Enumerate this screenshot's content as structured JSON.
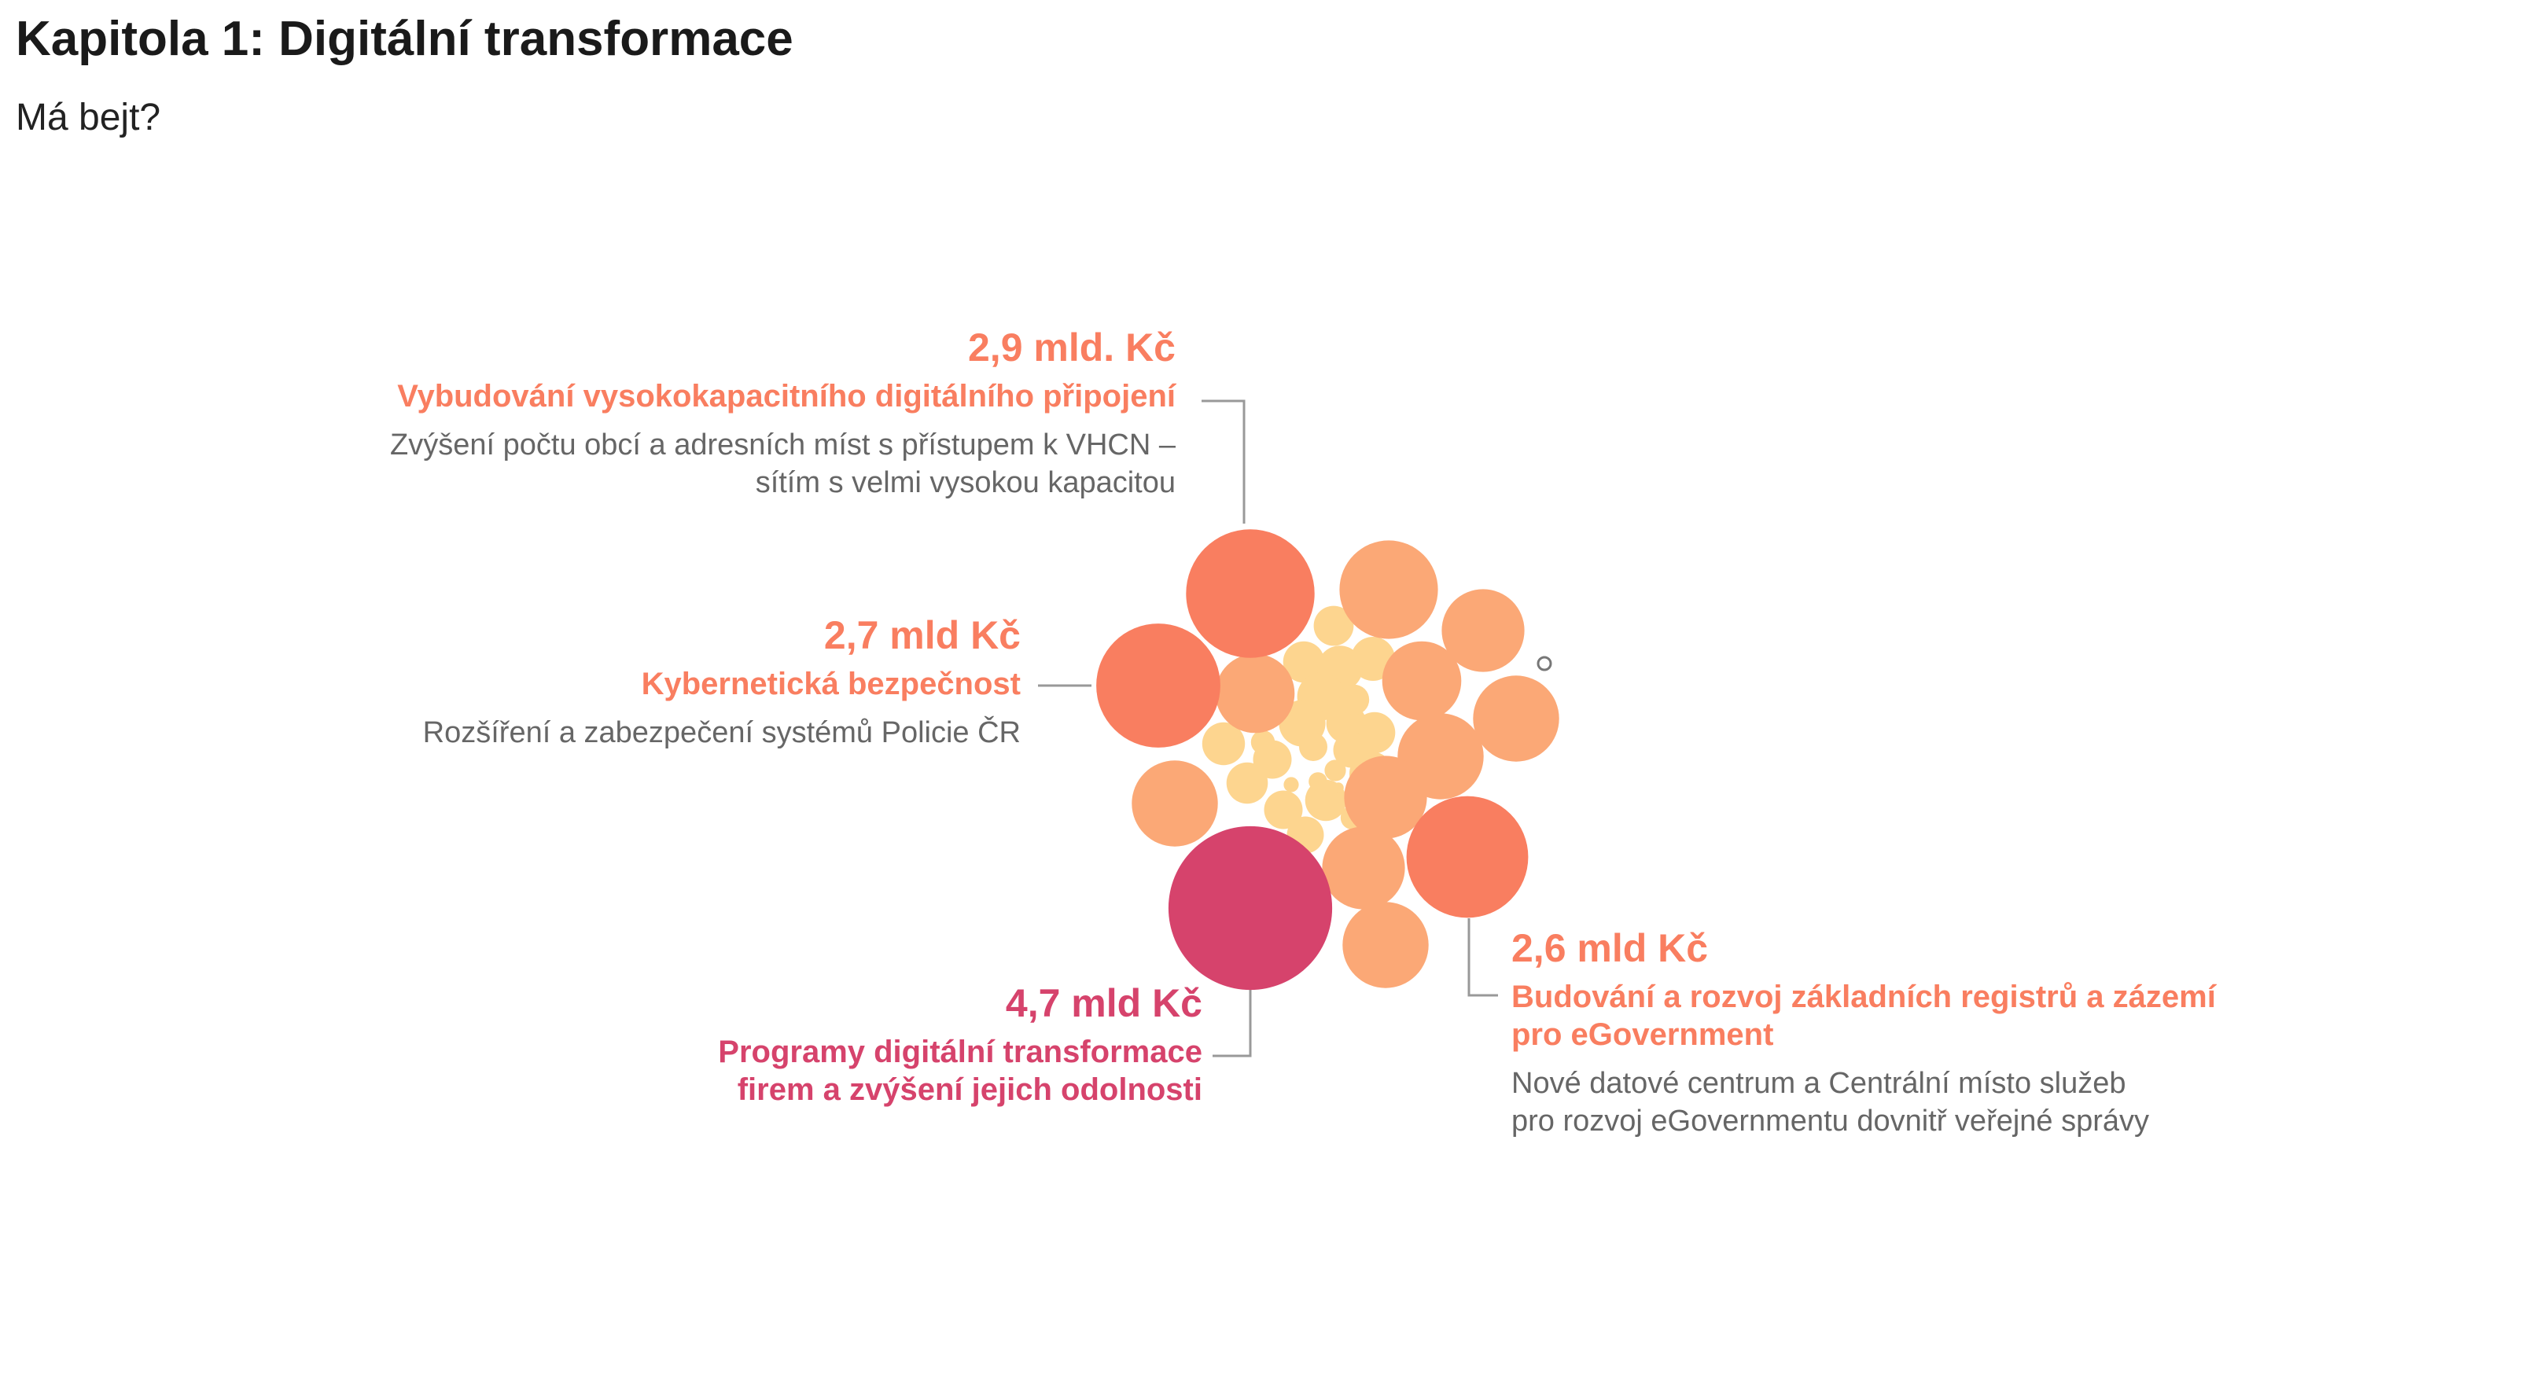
{
  "title": "Kapitola 1: Digitální transformace",
  "subtitle": "Má bejt?",
  "colors": {
    "coral": "#f97e60",
    "salmon": "#fba876",
    "pale": "#fdd58f",
    "crimson": "#d6436c",
    "desc_text": "#666666",
    "leader": "#999999"
  },
  "annotations": {
    "a1": {
      "amount": "2,9 mld. Kč",
      "heading": "Vybudování vysokokapacitního digitálního připojení",
      "desc_lines": [
        "Zvýšení počtu obcí a adresních míst s přístupem k VHCN –",
        "sítím s velmi vysokou kapacitou"
      ]
    },
    "a2": {
      "amount": "2,7 mld Kč",
      "heading": "Kybernetická bezpečnost",
      "desc_lines": [
        "Rozšíření a zabezpečení systémů Policie ČR"
      ]
    },
    "a3": {
      "amount": "4,7 mld Kč",
      "heading_lines": [
        "Programy digitální transformace",
        "firem a zvýšení jejich odolnosti"
      ]
    },
    "a4": {
      "amount": "2,6 mld Kč",
      "heading_lines": [
        "Budování a rozvoj základních registrů a zázemí",
        "pro eGovernment"
      ],
      "desc_lines": [
        "Nové datové centrum a Centrální místo služeb",
        "pro rozvoj eGovernmentu dovnitř veřejné správy"
      ]
    }
  },
  "chart_data": {
    "type": "bubble",
    "unit": "mld Kč",
    "labeled": [
      {
        "name": "Vybudování vysokokapacitního digitálního připojení",
        "value": 2.9,
        "color": "#f97e60"
      },
      {
        "name": "Kybernetická bezpečnost",
        "value": 2.7,
        "color": "#f97e60"
      },
      {
        "name": "Programy digitální transformace firem a zvýšení jejich odolnosti",
        "value": 4.7,
        "color": "#d6436c"
      },
      {
        "name": "Budování a rozvoj základních registrů a zázemí pro eGovernment",
        "value": 2.6,
        "color": "#f97e60"
      }
    ],
    "unlabeled_salmon_values": [
      1.7,
      1.2,
      1.1,
      1.1,
      1.3,
      1.3,
      1.3,
      1.2,
      1.2,
      1.3
    ],
    "unlabeled_pale_values": [
      0.28,
      0.34,
      0.3,
      0.36,
      0.4,
      0.38,
      0.32,
      0.26,
      0.3,
      0.28,
      0.34,
      0.3,
      0.26,
      0.24,
      0.3,
      0.22,
      0.16,
      0.14,
      0.1,
      0.1,
      0.08,
      0.06,
      0.04,
      0.02
    ],
    "unlabeled_outline_values": [
      0.04
    ]
  }
}
